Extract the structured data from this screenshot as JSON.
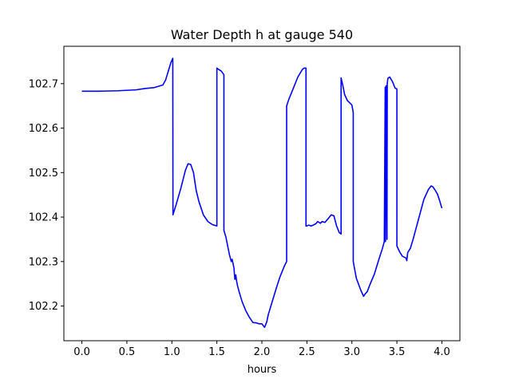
{
  "chart_data": {
    "type": "line",
    "title": "Water Depth h at gauge 540",
    "xlabel": "hours",
    "ylabel": "",
    "xlim": [
      -0.2,
      4.2
    ],
    "ylim": [
      102.122,
      102.784
    ],
    "xticks": [
      0.0,
      0.5,
      1.0,
      1.5,
      2.0,
      2.5,
      3.0,
      3.5,
      4.0
    ],
    "xtick_labels": [
      "0.0",
      "0.5",
      "1.0",
      "1.5",
      "2.0",
      "2.5",
      "3.0",
      "3.5",
      "4.0"
    ],
    "yticks": [
      102.2,
      102.3,
      102.4,
      102.5,
      102.6,
      102.7
    ],
    "ytick_labels": [
      "102.2",
      "102.3",
      "102.4",
      "102.5",
      "102.6",
      "102.7"
    ],
    "grid": false,
    "legend": "none",
    "series": [
      {
        "color": "#0000ff",
        "x": [
          0.0,
          0.2,
          0.4,
          0.6,
          0.7,
          0.8,
          0.9,
          0.93,
          0.96,
          0.99,
          1.01,
          1.012,
          1.05,
          1.1,
          1.15,
          1.18,
          1.21,
          1.24,
          1.27,
          1.3,
          1.35,
          1.4,
          1.45,
          1.5,
          1.5,
          1.512,
          1.55,
          1.578,
          1.578,
          1.6,
          1.62,
          1.64,
          1.66,
          1.67,
          1.68,
          1.69,
          1.7,
          1.71,
          1.72,
          1.73,
          1.75,
          1.78,
          1.82,
          1.86,
          1.9,
          1.94,
          1.97,
          2.0,
          2.03,
          2.055,
          2.07,
          2.1,
          2.13,
          2.16,
          2.2,
          2.25,
          2.275,
          2.275,
          2.3,
          2.35,
          2.4,
          2.45,
          2.47,
          2.49,
          2.49,
          2.5,
          2.52,
          2.55,
          2.6,
          2.62,
          2.65,
          2.67,
          2.7,
          2.73,
          2.77,
          2.8,
          2.83,
          2.86,
          2.88,
          2.88,
          2.9,
          2.92,
          2.95,
          3.0,
          3.015,
          3.015,
          3.05,
          3.1,
          3.13,
          3.15,
          3.17,
          3.2,
          3.25,
          3.3,
          3.34,
          3.36,
          3.37,
          3.373,
          3.38,
          3.39,
          3.393,
          3.4,
          3.42,
          3.45,
          3.48,
          3.5,
          3.5,
          3.53,
          3.56,
          3.6,
          3.61,
          3.62,
          3.65,
          3.68,
          3.72,
          3.76,
          3.8,
          3.85,
          3.88,
          3.9,
          3.92,
          3.95,
          3.97,
          4.0
        ],
        "y": [
          102.683,
          102.683,
          102.684,
          102.686,
          102.689,
          102.691,
          102.697,
          102.708,
          102.728,
          102.748,
          102.757,
          102.405,
          102.43,
          102.465,
          102.505,
          102.52,
          102.518,
          102.5,
          102.46,
          102.435,
          102.405,
          102.39,
          102.383,
          102.38,
          102.735,
          102.733,
          102.728,
          102.72,
          102.37,
          102.355,
          102.335,
          102.315,
          102.3,
          102.305,
          102.295,
          102.285,
          102.26,
          102.27,
          102.255,
          102.245,
          102.23,
          102.21,
          102.19,
          102.175,
          102.163,
          102.162,
          102.16,
          102.16,
          102.152,
          102.165,
          102.18,
          102.2,
          102.22,
          102.24,
          102.265,
          102.29,
          102.3,
          102.65,
          102.665,
          102.69,
          102.715,
          102.732,
          102.735,
          102.735,
          102.38,
          102.38,
          102.382,
          102.38,
          102.385,
          102.39,
          102.386,
          102.39,
          102.388,
          102.395,
          102.405,
          102.403,
          102.38,
          102.365,
          102.362,
          102.713,
          102.695,
          102.675,
          102.662,
          102.652,
          102.635,
          102.3,
          102.262,
          102.235,
          102.222,
          102.228,
          102.232,
          102.248,
          102.272,
          102.305,
          102.33,
          102.345,
          102.692,
          102.345,
          102.695,
          102.35,
          102.7,
          102.712,
          102.715,
          102.705,
          102.69,
          102.688,
          102.335,
          102.322,
          102.312,
          102.308,
          102.302,
          102.32,
          102.33,
          102.35,
          102.38,
          102.41,
          102.44,
          102.462,
          102.47,
          102.468,
          102.462,
          102.452,
          102.44,
          102.42
        ]
      }
    ]
  }
}
